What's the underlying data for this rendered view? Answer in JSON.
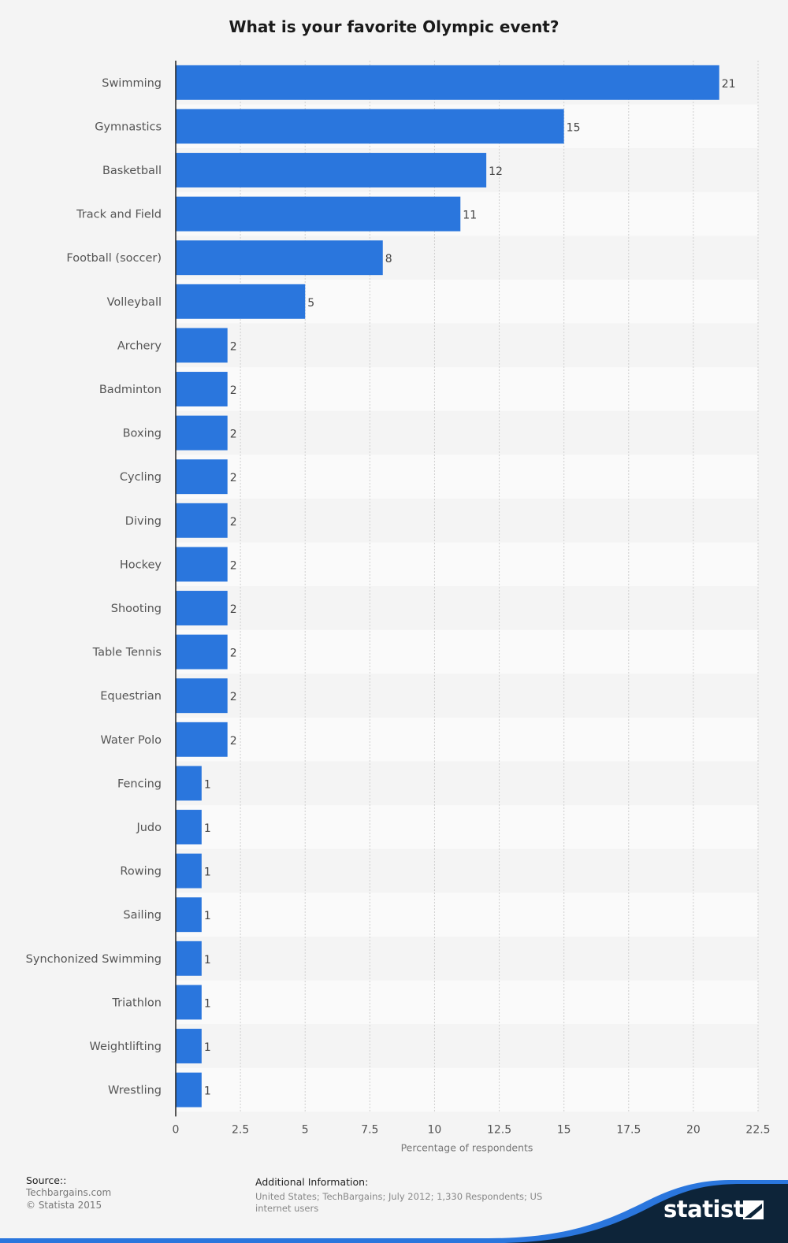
{
  "chart_data": {
    "type": "bar",
    "orientation": "horizontal",
    "title": "What is your favorite Olympic event?",
    "xlabel": "Percentage of respondents",
    "ylabel": "",
    "categories": [
      "Swimming",
      "Gymnastics",
      "Basketball",
      "Track and Field",
      "Football (soccer)",
      "Volleyball",
      "Archery",
      "Badminton",
      "Boxing",
      "Cycling",
      "Diving",
      "Hockey",
      "Shooting",
      "Table Tennis",
      "Equestrian",
      "Water Polo",
      "Fencing",
      "Judo",
      "Rowing",
      "Sailing",
      "Synchonized Swimming",
      "Triathlon",
      "Weightlifting",
      "Wrestling"
    ],
    "values": [
      21,
      15,
      12,
      11,
      8,
      5,
      2,
      2,
      2,
      2,
      2,
      2,
      2,
      2,
      2,
      2,
      1,
      1,
      1,
      1,
      1,
      1,
      1,
      1
    ],
    "xlim": [
      0,
      22.5
    ],
    "xticks": [
      "0",
      "2.5",
      "5",
      "7.5",
      "10",
      "12.5",
      "15",
      "17.5",
      "20",
      "22.5"
    ],
    "grid": true,
    "bar_color": "#2a76dd"
  },
  "footer": {
    "source_heading": "Source::",
    "source_lines": [
      "Techbargains.com",
      "© Statista 2015"
    ],
    "info_heading": "Additional Information:",
    "info_text": "United States; TechBargains; July 2012; 1,330 Respondents; US internet users"
  },
  "brand": {
    "logo_text": "statista",
    "wave_color": "#2a76dd",
    "dark_color": "#0d2439"
  }
}
